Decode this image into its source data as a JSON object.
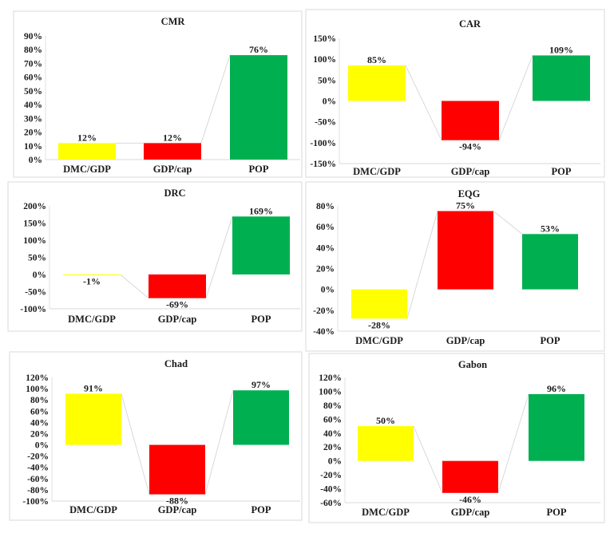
{
  "colors": {
    "DMC/GDP": "#ffff00",
    "GDP/cap": "#ff0000",
    "POP": "#00b050",
    "connector": "#d9d9d9",
    "axis": "#d9d9d9"
  },
  "chart_data": [
    {
      "type": "bar",
      "title": "CMR",
      "categories": [
        "DMC/GDP",
        "GDP/cap",
        "POP"
      ],
      "values": [
        12,
        12,
        76
      ],
      "value_labels": [
        "12%",
        "12%",
        "76%"
      ],
      "ylim": [
        0,
        90
      ],
      "yticks": [
        "0%",
        "10%",
        "20%",
        "30%",
        "40%",
        "50%",
        "60%",
        "70%",
        "80%",
        "90%"
      ],
      "ytick_values": [
        0,
        10,
        20,
        30,
        40,
        50,
        60,
        70,
        80,
        90
      ],
      "grid": false
    },
    {
      "type": "bar",
      "title": "CAR",
      "categories": [
        "DMC/GDP",
        "GDP/cap",
        "POP"
      ],
      "values": [
        85,
        -94,
        109
      ],
      "value_labels": [
        "85%",
        "-94%",
        "109%"
      ],
      "ylim": [
        -150,
        150
      ],
      "yticks": [
        "-150%",
        "-100%",
        "-50%",
        "0%",
        "50%",
        "100%",
        "150%"
      ],
      "ytick_values": [
        -150,
        -100,
        -50,
        0,
        50,
        100,
        150
      ],
      "grid": false
    },
    {
      "type": "bar",
      "title": "DRC",
      "categories": [
        "DMC/GDP",
        "GDP/cap",
        "POP"
      ],
      "values": [
        -1,
        -69,
        169
      ],
      "value_labels": [
        "-1%",
        "-69%",
        "169%"
      ],
      "ylim": [
        -100,
        200
      ],
      "yticks": [
        "-100%",
        "-50%",
        "0%",
        "50%",
        "100%",
        "150%",
        "200%"
      ],
      "ytick_values": [
        -100,
        -50,
        0,
        50,
        100,
        150,
        200
      ],
      "grid": false
    },
    {
      "type": "bar",
      "title": "EQG",
      "categories": [
        "DMC/GDP",
        "GDP/cap",
        "POP"
      ],
      "values": [
        -28,
        75,
        53
      ],
      "value_labels": [
        "-28%",
        "75%",
        "53%"
      ],
      "ylim": [
        -40,
        80
      ],
      "yticks": [
        "-40%",
        "-20%",
        "0%",
        "20%",
        "40%",
        "60%",
        "80%"
      ],
      "ytick_values": [
        -40,
        -20,
        0,
        20,
        40,
        60,
        80
      ],
      "grid": false
    },
    {
      "type": "bar",
      "title": "Chad",
      "categories": [
        "DMC/GDP",
        "GDP/cap",
        "POP"
      ],
      "values": [
        91,
        -88,
        97
      ],
      "value_labels": [
        "91%",
        "-88%",
        "97%"
      ],
      "ylim": [
        -100,
        120
      ],
      "yticks": [
        "-100%",
        "-80%",
        "-60%",
        "-40%",
        "-20%",
        "0%",
        "20%",
        "40%",
        "60%",
        "80%",
        "100%",
        "120%"
      ],
      "ytick_values": [
        -100,
        -80,
        -60,
        -40,
        -20,
        0,
        20,
        40,
        60,
        80,
        100,
        120
      ],
      "grid": false
    },
    {
      "type": "bar",
      "title": "Gabon",
      "categories": [
        "DMC/GDP",
        "GDP/cap",
        "POP"
      ],
      "values": [
        50,
        -46,
        96
      ],
      "value_labels": [
        "50%",
        "-46%",
        "96%"
      ],
      "ylim": [
        -60,
        120
      ],
      "yticks": [
        "-60%",
        "-40%",
        "-20%",
        "0%",
        "20%",
        "40%",
        "60%",
        "80%",
        "100%",
        "120%"
      ],
      "ytick_values": [
        -60,
        -40,
        -20,
        0,
        20,
        40,
        60,
        80,
        100,
        120
      ],
      "grid": false
    }
  ]
}
